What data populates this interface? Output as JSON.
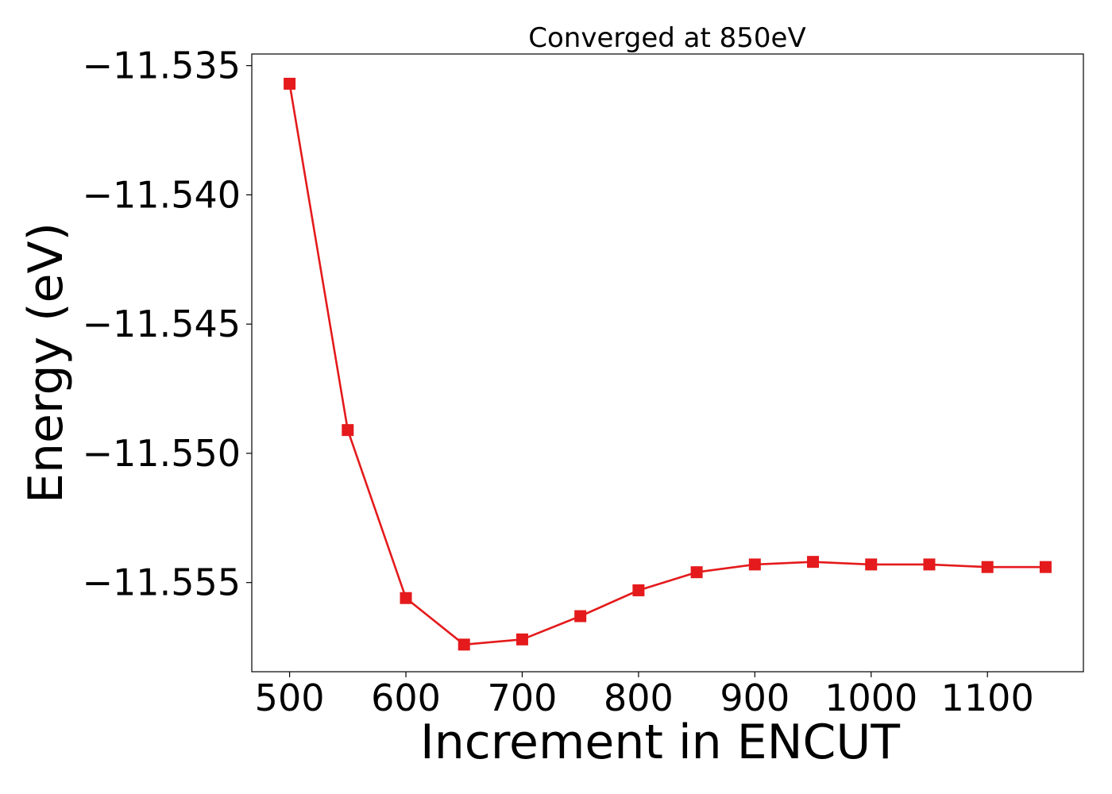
{
  "chart_data": {
    "type": "line",
    "title": "Converged at 850eV",
    "xlabel": "Increment in ENCUT",
    "ylabel": "Energy (eV)",
    "x": [
      500,
      550,
      600,
      650,
      700,
      750,
      800,
      850,
      900,
      950,
      1000,
      1050,
      1100,
      1150
    ],
    "series": [
      {
        "values": [
          -11.5357,
          -11.5491,
          -11.5556,
          -11.5574,
          -11.5572,
          -11.5563,
          -11.5553,
          -11.5546,
          -11.5543,
          -11.5542,
          -11.5543,
          -11.5543,
          -11.5544,
          -11.5544
        ],
        "color": "#e41a1c",
        "marker": "square"
      }
    ],
    "xlim": [
      467.5,
      1182.5
    ],
    "ylim": [
      -11.55845,
      -11.53455
    ],
    "xticks": [
      500,
      600,
      700,
      800,
      900,
      1000,
      1100
    ],
    "xtick_labels": [
      "500",
      "600",
      "700",
      "800",
      "900",
      "1000",
      "1100"
    ],
    "yticks": [
      -11.535,
      -11.54,
      -11.545,
      -11.55,
      -11.555
    ],
    "ytick_labels": [
      "−11.535",
      "−11.540",
      "−11.545",
      "−11.550",
      "−11.555"
    ],
    "grid": false,
    "legend": "none"
  }
}
